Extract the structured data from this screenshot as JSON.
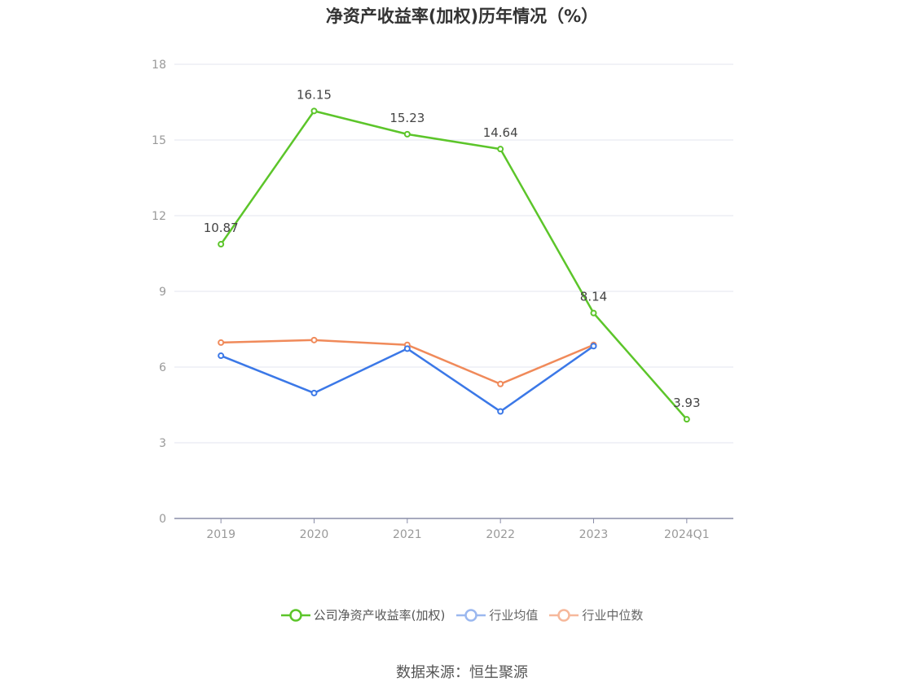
{
  "title": "净资产收益率(加权)历年情况（%）",
  "source": "数据来源：恒生聚源",
  "colors": {
    "company": "#5cc52a",
    "avg": "#3b78e7",
    "median": "#f08a5a",
    "grid": "#e3e6ef",
    "axis": "#8a8da8",
    "tick": "#999999"
  },
  "chart_data": {
    "type": "line",
    "categories": [
      "2019",
      "2020",
      "2021",
      "2022",
      "2023",
      "2024Q1"
    ],
    "ylim": [
      0,
      18
    ],
    "yticks": [
      0,
      3,
      6,
      9,
      12,
      15,
      18
    ],
    "grid": true,
    "legend_position": "bottom",
    "series": [
      {
        "name": "公司净资产收益率(加权)",
        "color": "#5cc52a",
        "values": [
          10.87,
          16.15,
          15.23,
          14.64,
          8.14,
          3.93
        ],
        "labels": [
          "10.87",
          "16.15",
          "15.23",
          "14.64",
          "8.14",
          "3.93"
        ]
      },
      {
        "name": "行业均值",
        "color": "#3b78e7",
        "values": [
          6.45,
          4.97,
          6.73,
          4.24,
          6.83,
          null
        ]
      },
      {
        "name": "行业中位数",
        "color": "#f08a5a",
        "values": [
          6.97,
          7.07,
          6.88,
          5.33,
          6.88,
          null
        ]
      }
    ]
  }
}
